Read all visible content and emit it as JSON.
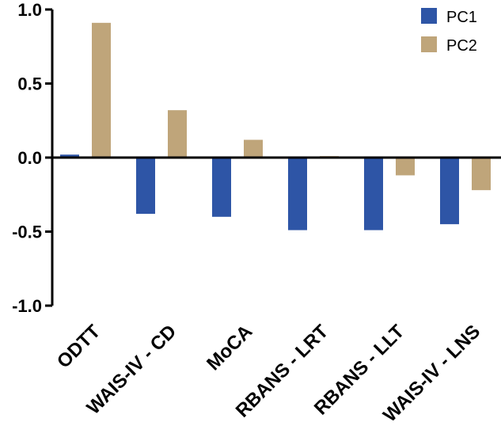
{
  "chart_data": {
    "type": "bar",
    "title": "",
    "xlabel": "",
    "ylabel": "",
    "categories": [
      "ODTT",
      "WAIS-IV - CD",
      "MoCA",
      "RBANS - LRT",
      "RBANS - LLT",
      "WAIS-IV - LNS"
    ],
    "series": [
      {
        "name": "PC1",
        "color": "#2E55A6",
        "values": [
          0.02,
          -0.38,
          -0.4,
          -0.49,
          -0.49,
          -0.45
        ]
      },
      {
        "name": "PC2",
        "color": "#BFA57A",
        "values": [
          0.91,
          0.32,
          0.12,
          0.01,
          -0.12,
          -0.22
        ]
      }
    ],
    "ylim": [
      -1.0,
      1.0
    ],
    "yticks": [
      "-1.0",
      "-0.5",
      "0.0",
      "0.5",
      "1.0"
    ],
    "legend": "top-right",
    "grid": false
  }
}
